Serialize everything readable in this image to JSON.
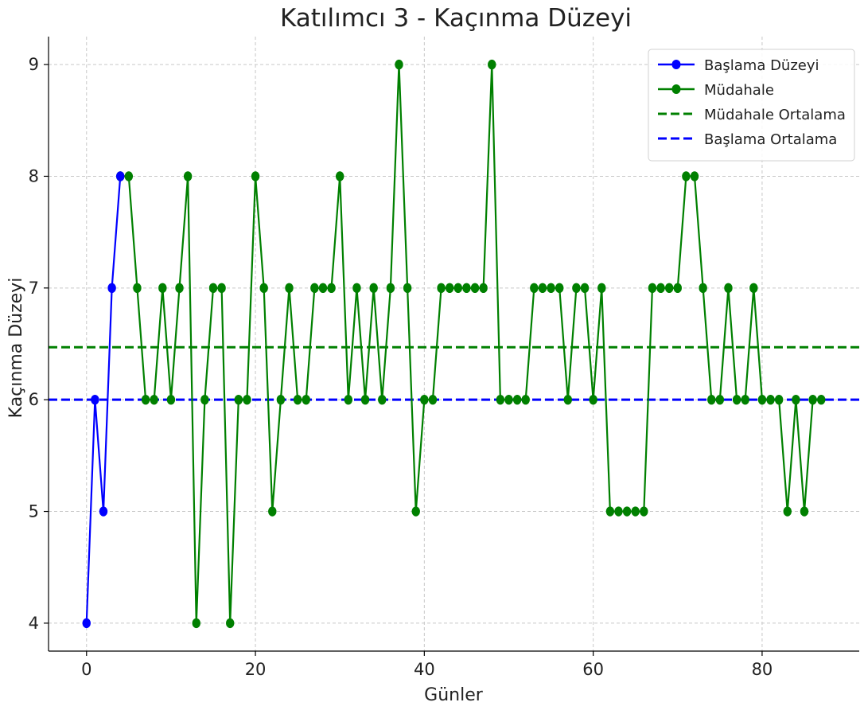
{
  "chart_data": {
    "type": "line",
    "title": "Katılımcı 3 - Kaçınma Düzeyi",
    "xlabel": "Günler",
    "ylabel": "Kaçınma Düzeyi",
    "xlim": [
      -4.5,
      91.5
    ],
    "ylim": [
      3.75,
      9.25
    ],
    "xticks": [
      0,
      20,
      40,
      60,
      80
    ],
    "yticks": [
      4,
      5,
      6,
      7,
      8,
      9
    ],
    "grid": true,
    "legend_position": "top-right",
    "series": [
      {
        "name": "Başlama Düzeyi",
        "kind": "line-marker",
        "color": "#0000ff",
        "x": [
          0,
          1,
          2,
          3,
          4
        ],
        "y": [
          4,
          6,
          5,
          7,
          8
        ]
      },
      {
        "name": "Müdahale",
        "kind": "line-marker",
        "color": "#008000",
        "x": [
          4,
          5,
          6,
          7,
          8,
          9,
          10,
          11,
          12,
          13,
          14,
          15,
          16,
          17,
          18,
          19,
          20,
          21,
          22,
          23,
          24,
          25,
          26,
          27,
          28,
          29,
          30,
          31,
          32,
          33,
          34,
          35,
          36,
          37,
          38,
          39,
          40,
          41,
          42,
          43,
          44,
          45,
          46,
          47,
          48,
          49,
          50,
          51,
          52,
          53,
          54,
          55,
          56,
          57,
          58,
          59,
          60,
          61,
          62,
          63,
          64,
          65,
          66,
          67,
          68,
          69,
          70,
          71,
          72,
          73,
          74,
          75,
          76,
          77,
          78,
          79,
          80,
          81,
          82,
          83,
          84,
          85,
          86,
          87
        ],
        "y": [
          8,
          8,
          7,
          6,
          6,
          7,
          6,
          7,
          8,
          4,
          6,
          7,
          7,
          4,
          6,
          6,
          8,
          7,
          5,
          6,
          7,
          6,
          6,
          7,
          7,
          7,
          8,
          6,
          7,
          6,
          7,
          6,
          7,
          9,
          7,
          5,
          6,
          6,
          7,
          7,
          7,
          7,
          7,
          7,
          9,
          6,
          6,
          6,
          6,
          7,
          7,
          7,
          7,
          6,
          7,
          7,
          6,
          7,
          5,
          5,
          5,
          5,
          5,
          7,
          7,
          7,
          7,
          8,
          8,
          7,
          6,
          6,
          7,
          6,
          6,
          7,
          6,
          6,
          6,
          5,
          6,
          5,
          6,
          6
        ]
      },
      {
        "name": "Müdahale Ortalama",
        "kind": "hline",
        "color": "#008000",
        "y": 6.47
      },
      {
        "name": "Başlama Ortalama",
        "kind": "hline",
        "color": "#0000ff",
        "y": 6.0
      }
    ]
  }
}
